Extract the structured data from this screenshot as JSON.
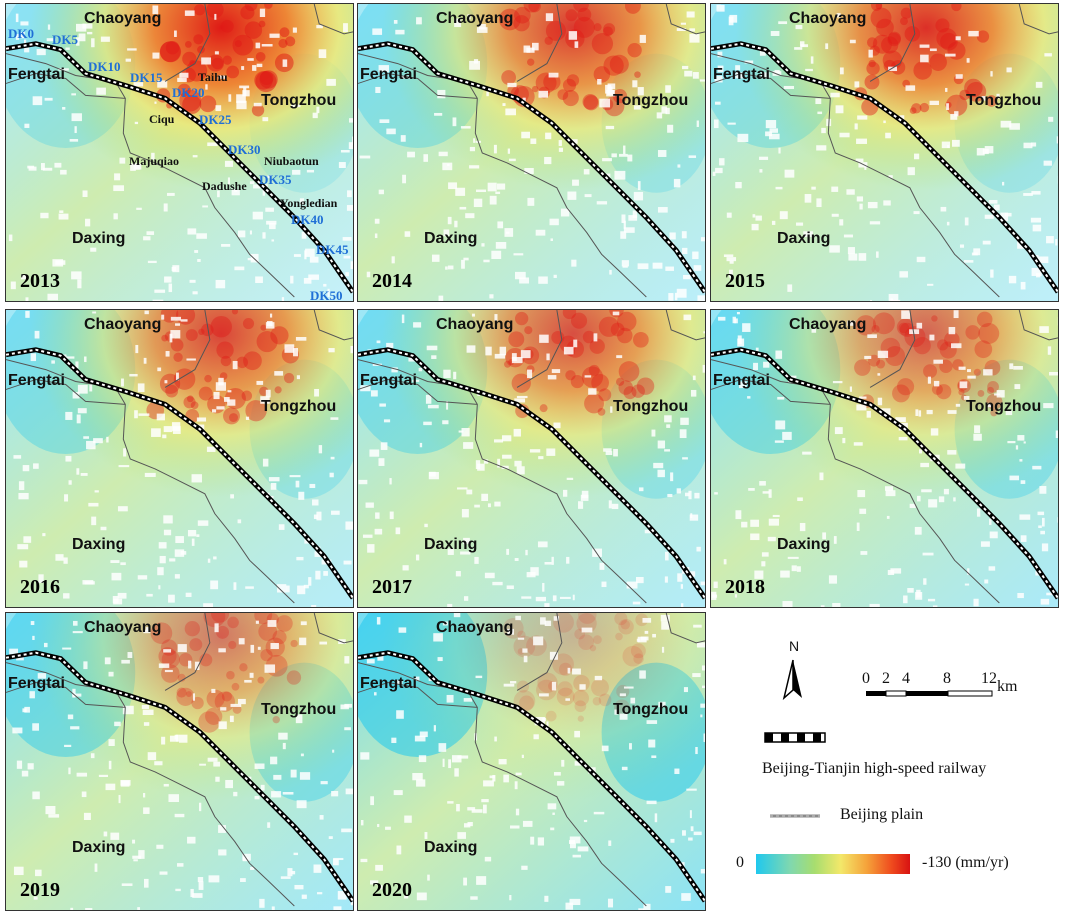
{
  "panels": [
    {
      "year": "2013"
    },
    {
      "year": "2014"
    },
    {
      "year": "2015"
    },
    {
      "year": "2016"
    },
    {
      "year": "2017"
    },
    {
      "year": "2018"
    },
    {
      "year": "2019"
    },
    {
      "year": "2020"
    }
  ],
  "districts": {
    "chaoyang": "Chaoyang",
    "fengtai": "Fengtai",
    "tongzhou": "Tongzhou",
    "daxing": "Daxing"
  },
  "towns": {
    "taihu": "Taihu",
    "ciqu": "Ciqu",
    "majuqiao": "Majuqiao",
    "niubaotun": "Niubaotun",
    "dadushe": "Dadushe",
    "yongledian": "Yongledian"
  },
  "mileposts": [
    "DK0",
    "DK5",
    "DK10",
    "DK15",
    "DK20",
    "DK25",
    "DK30",
    "DK35",
    "DK40",
    "DK45",
    "DK50"
  ],
  "legend": {
    "north": "N",
    "scale_ticks": [
      "0",
      "2",
      "4",
      "8",
      "12"
    ],
    "scale_unit": "km",
    "railway_label": "Beijing-Tianjin high-speed railway",
    "plain_label": "Beijing plain",
    "color_min": "0",
    "color_max": "-130 (mm/yr)"
  },
  "colors": {
    "cyan": "#1fc8ee",
    "green": "#a7dd6f",
    "yellow": "#f3e86a",
    "orange": "#f17a27",
    "red": "#df1a16"
  },
  "subsidence_intensity": [
    1.0,
    0.85,
    0.9,
    0.8,
    0.75,
    0.65,
    0.55,
    0.25
  ]
}
